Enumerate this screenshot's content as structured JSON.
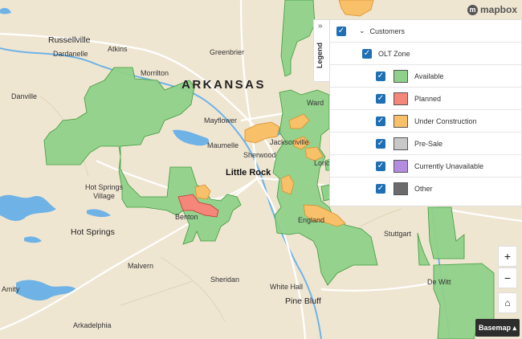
{
  "map": {
    "colors": {
      "land": "#efe6d2",
      "water": "#6fb3e6",
      "road": "#ffffff",
      "available": "#8fd18a",
      "available_stroke": "#3f9a3a",
      "planned": "#f4867a",
      "under_construction": "#f9c06a",
      "pre_sale": "#c8c8c8",
      "currently_unavailable": "#b48ce0",
      "other": "#6b6b6b"
    },
    "places": {
      "russellville": "Russellville",
      "dardanelle": "Dardanelle",
      "atkins": "Atkins",
      "greenbrier": "Greenbrier",
      "morrilton": "Morrilton",
      "danville": "Danville",
      "arkansas": "ARKANSAS",
      "mayflower": "Mayflower",
      "maumelle": "Maumelle",
      "jacksonville": "Jacksonville",
      "sherwood": "Sherwood",
      "little_rock": "Little Rock",
      "hot_springs_village": "Hot Springs\nVillage",
      "benton": "Benton",
      "england": "England",
      "stuttgart": "Stuttgart",
      "hot_springs": "Hot Springs",
      "malvern": "Malvern",
      "sheridan": "Sheridan",
      "white_hall": "White Hall",
      "de_witt": "De Witt",
      "amity": "Amity",
      "pine_bluff": "Pine Bluff",
      "arkadelphia": "Arkadelphia",
      "ward": "Ward",
      "lonoke": "Lono"
    },
    "attribution": "mapbox"
  },
  "legend": {
    "tab_label": "Legend",
    "tab_chevron": "»",
    "customers": "Customers",
    "olt_zone": "OLT Zone",
    "items": [
      {
        "label": "Available",
        "color": "#8fd18a"
      },
      {
        "label": "Planned",
        "color": "#f4867a"
      },
      {
        "label": "Under Construction",
        "color": "#f9c06a"
      },
      {
        "label": "Pre-Sale",
        "color": "#c8c8c8"
      },
      {
        "label": "Currently Unavailable",
        "color": "#b48ce0"
      },
      {
        "label": "Other",
        "color": "#6b6b6b"
      }
    ]
  },
  "controls": {
    "zoom_in": "+",
    "zoom_out": "−",
    "home": "⌂",
    "basemap": "Basemap ▴"
  }
}
